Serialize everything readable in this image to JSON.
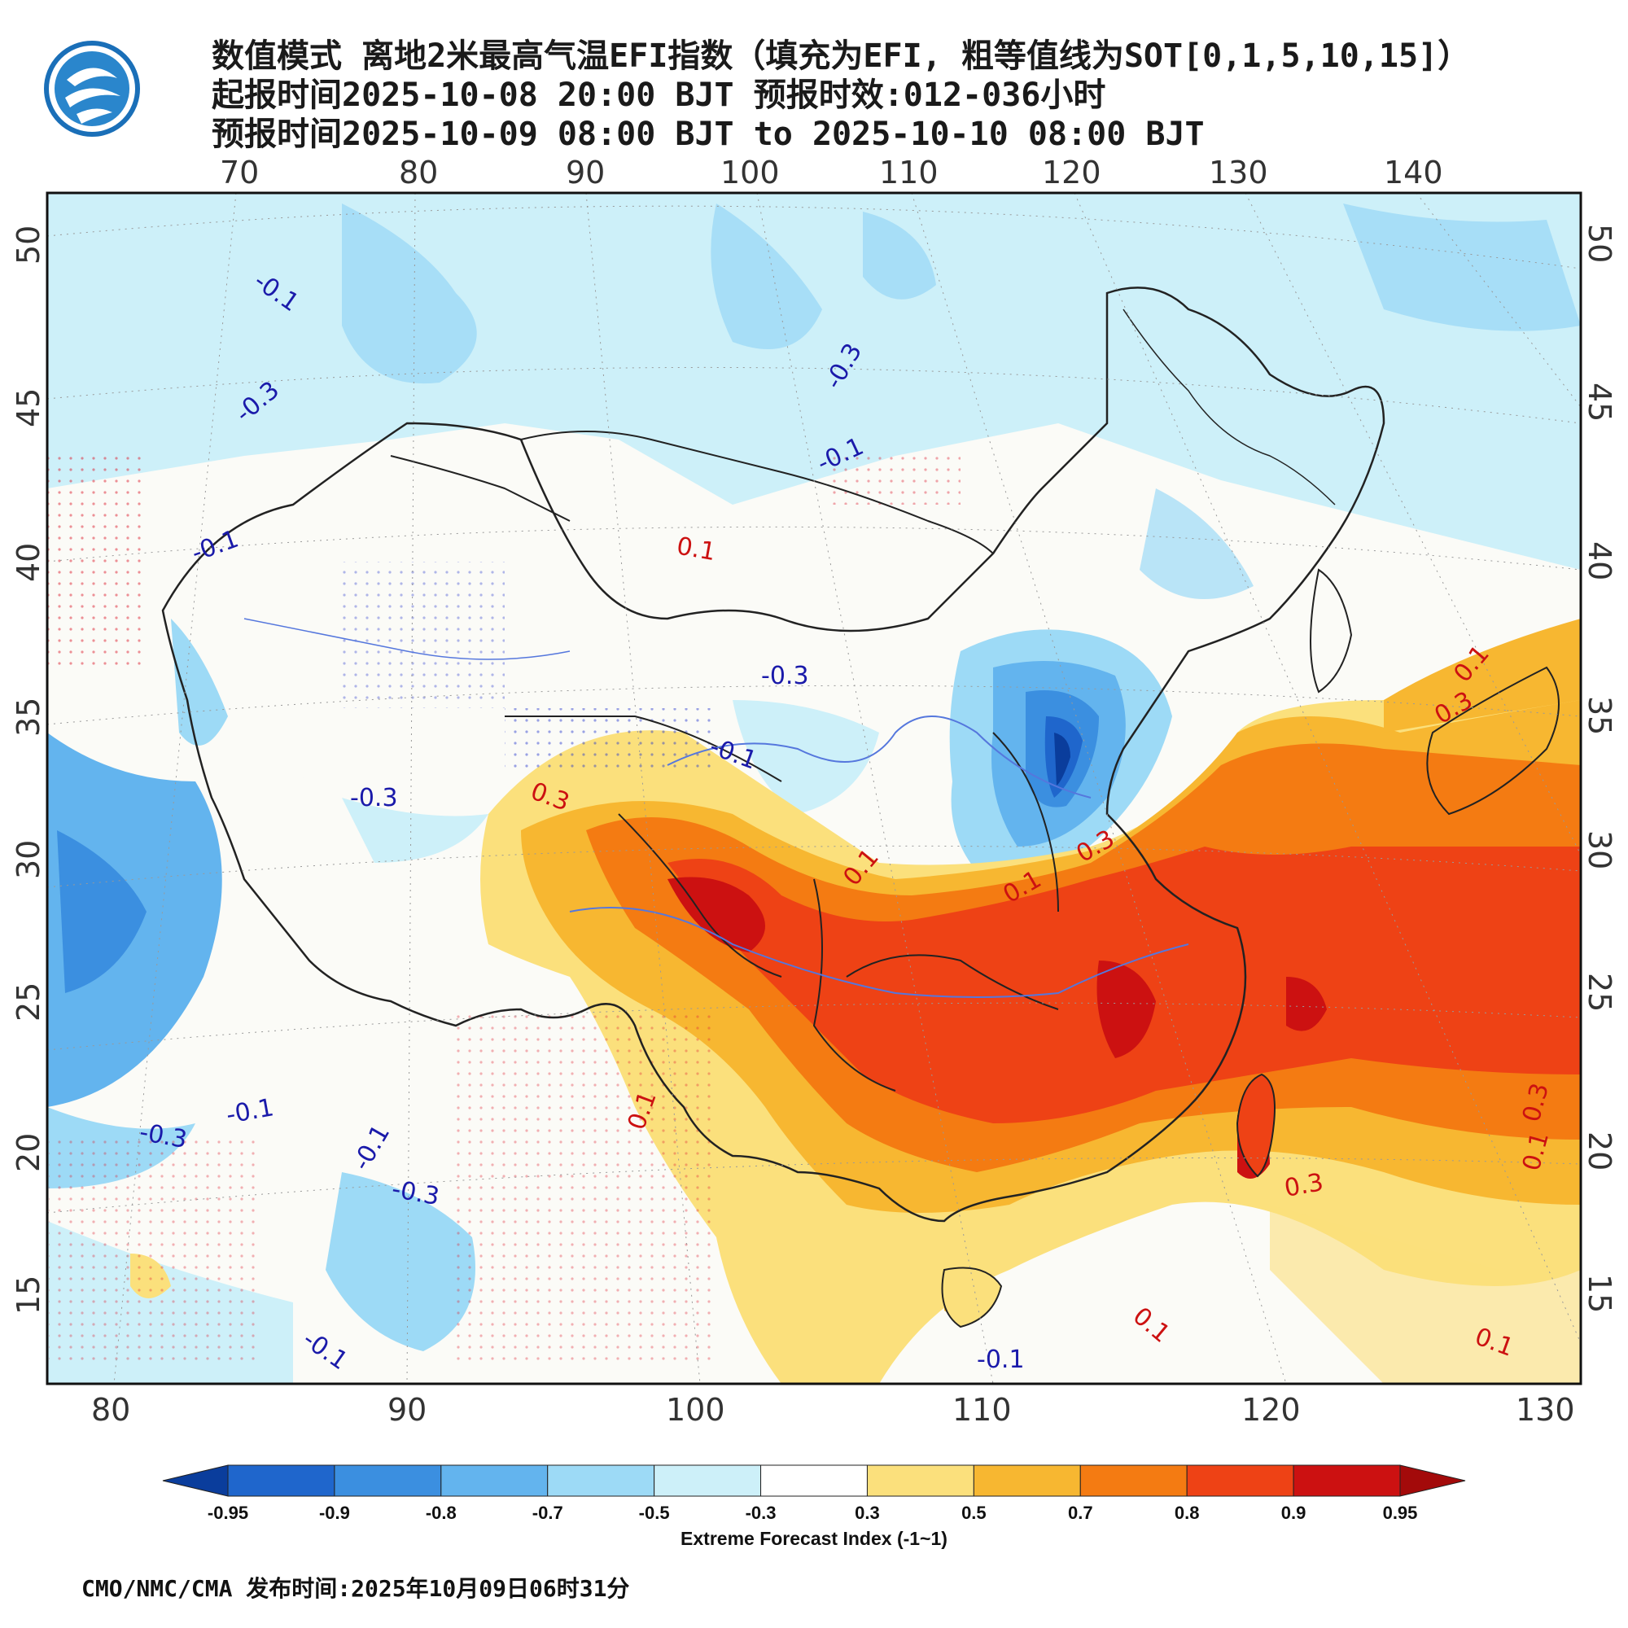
{
  "title": {
    "line1": "数值模式 离地2米最高气温EFI指数（填充为EFI, 粗等值线为SOT[0,1,5,10,15]）",
    "line2": "起报时间2025-10-08 20:00 BJT 预报时效:012-036小时",
    "line3": "预报时间2025-10-09 08:00 BJT to 2025-10-10 08:00 BJT"
  },
  "map": {
    "top_lon_labels": [
      "70",
      "80",
      "90",
      "100",
      "110",
      "120",
      "130",
      "140"
    ],
    "bottom_lon_labels": [
      "80",
      "90",
      "100",
      "110",
      "120",
      "130"
    ],
    "left_lat_labels": [
      "50",
      "45",
      "40",
      "35",
      "30",
      "25",
      "20",
      "15"
    ],
    "right_lat_labels": [
      "50",
      "45",
      "40",
      "35",
      "30",
      "25",
      "20",
      "15"
    ],
    "contour_labels": [
      {
        "text": "-0.1",
        "color": "#1a1aaa"
      },
      {
        "text": "-0.3",
        "color": "#1a1aaa"
      },
      {
        "text": "-0.3",
        "color": "#1a1aaa"
      },
      {
        "text": "-0.1",
        "color": "#1a1aaa"
      },
      {
        "text": "-0.1",
        "color": "#1a1aaa"
      },
      {
        "text": "0.1",
        "color": "#cc1111"
      },
      {
        "text": "-0.3",
        "color": "#1a1aaa"
      },
      {
        "text": "-0.1",
        "color": "#1a1aaa"
      },
      {
        "text": "-0.3",
        "color": "#1a1aaa"
      },
      {
        "text": "0.3",
        "color": "#cc1111"
      },
      {
        "text": "-0.3",
        "color": "#1a1aaa"
      },
      {
        "text": "-0.1",
        "color": "#1a1aaa"
      },
      {
        "text": "-0.1",
        "color": "#1a1aaa"
      },
      {
        "text": "-0.3",
        "color": "#1a1aaa"
      },
      {
        "text": "-0.1",
        "color": "#1a1aaa"
      },
      {
        "text": "0.1",
        "color": "#cc1111"
      },
      {
        "text": "0.3",
        "color": "#cc1111"
      },
      {
        "text": "0.1",
        "color": "#cc1111"
      },
      {
        "text": "0.3",
        "color": "#cc1111"
      },
      {
        "text": "0.1",
        "color": "#cc1111"
      },
      {
        "text": "0.1",
        "color": "#cc1111"
      },
      {
        "text": "0.3",
        "color": "#cc1111"
      },
      {
        "text": "0.3",
        "color": "#cc1111"
      },
      {
        "text": "-0.1",
        "color": "#1a1aaa"
      },
      {
        "text": "0.1",
        "color": "#cc1111"
      },
      {
        "text": "0.1",
        "color": "#cc1111"
      },
      {
        "text": "0.1",
        "color": "#cc1111"
      }
    ]
  },
  "colorbar": {
    "ticks": [
      "-0.95",
      "-0.9",
      "-0.8",
      "-0.7",
      "-0.5",
      "-0.3",
      "0.3",
      "0.5",
      "0.7",
      "0.8",
      "0.9",
      "0.95"
    ],
    "colors": [
      "#0a3d9c",
      "#1f66cc",
      "#3b8fe0",
      "#63b4ee",
      "#9ddaf6",
      "#cdf0f9",
      "#ffffff",
      "#fbe07c",
      "#f7b731",
      "#f47b12",
      "#ee4215",
      "#cc1111",
      "#a30a0a"
    ],
    "title": "Extreme Forecast Index (-1~1)"
  },
  "footer": "CMO/NMC/CMA 发布时间:2025年10月09日06时31分"
}
